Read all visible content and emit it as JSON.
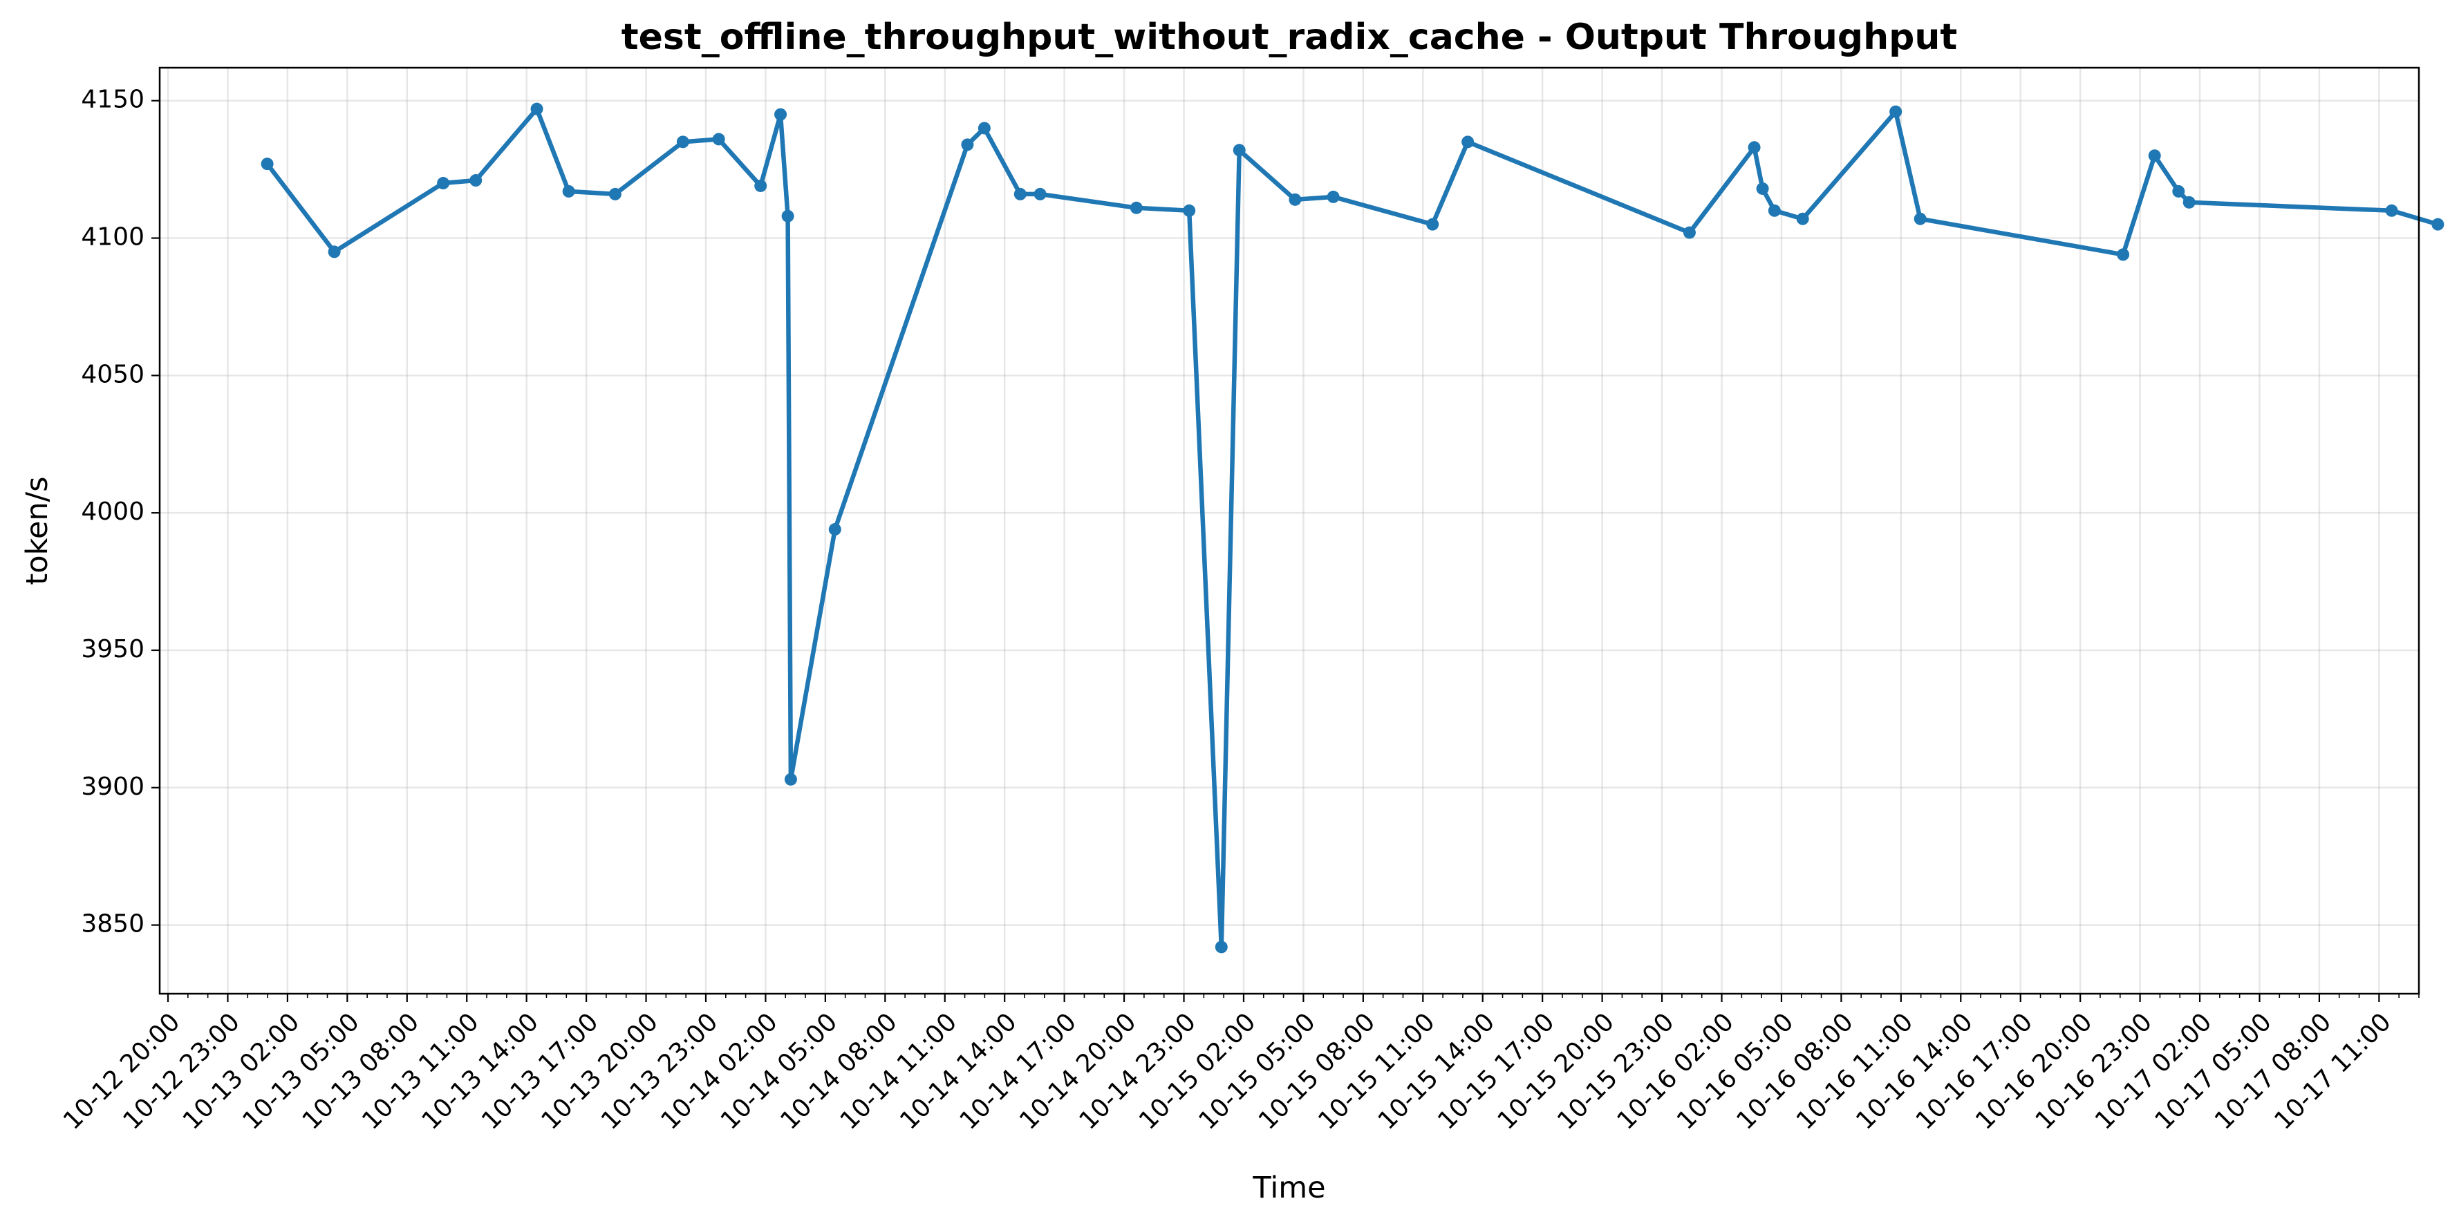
{
  "chart_data": {
    "type": "line",
    "title": "test_offline_throughput_without_radix_cache - Output Throughput",
    "xlabel": "Time",
    "ylabel": "token/s",
    "ylim": [
      3825,
      4162
    ],
    "xlim": [
      "2025-10-12T19:35",
      "2025-10-17T13:00"
    ],
    "grid": true,
    "color": "#1f77b4",
    "x_ticks": [
      "2025-10-12T20:00",
      "2025-10-12T23:00",
      "2025-10-13T02:00",
      "2025-10-13T05:00",
      "2025-10-13T08:00",
      "2025-10-13T11:00",
      "2025-10-13T14:00",
      "2025-10-13T17:00",
      "2025-10-13T20:00",
      "2025-10-13T23:00",
      "2025-10-14T02:00",
      "2025-10-14T05:00",
      "2025-10-14T08:00",
      "2025-10-14T11:00",
      "2025-10-14T14:00",
      "2025-10-14T17:00",
      "2025-10-14T20:00",
      "2025-10-14T23:00",
      "2025-10-15T02:00",
      "2025-10-15T05:00",
      "2025-10-15T08:00",
      "2025-10-15T11:00",
      "2025-10-15T14:00",
      "2025-10-15T17:00",
      "2025-10-15T20:00",
      "2025-10-15T23:00",
      "2025-10-16T02:00",
      "2025-10-16T05:00",
      "2025-10-16T08:00",
      "2025-10-16T11:00",
      "2025-10-16T14:00",
      "2025-10-16T17:00",
      "2025-10-16T20:00",
      "2025-10-16T23:00",
      "2025-10-17T02:00",
      "2025-10-17T05:00",
      "2025-10-17T08:00",
      "2025-10-17T11:00"
    ],
    "x_tick_labels": [
      "10-12 20:00",
      "10-12 23:00",
      "10-13 02:00",
      "10-13 05:00",
      "10-13 08:00",
      "10-13 11:00",
      "10-13 14:00",
      "10-13 17:00",
      "10-13 20:00",
      "10-13 23:00",
      "10-14 02:00",
      "10-14 05:00",
      "10-14 08:00",
      "10-14 11:00",
      "10-14 14:00",
      "10-14 17:00",
      "10-14 20:00",
      "10-14 23:00",
      "10-15 02:00",
      "10-15 05:00",
      "10-15 08:00",
      "10-15 11:00",
      "10-15 14:00",
      "10-15 17:00",
      "10-15 20:00",
      "10-15 23:00",
      "10-16 02:00",
      "10-16 05:00",
      "10-16 08:00",
      "10-16 11:00",
      "10-16 14:00",
      "10-16 17:00",
      "10-16 20:00",
      "10-16 23:00",
      "10-17 02:00",
      "10-17 05:00",
      "10-17 08:00",
      "10-17 11:00"
    ],
    "y_ticks": [
      3850,
      3900,
      3950,
      4000,
      4050,
      4100,
      4150
    ],
    "y_tick_labels": [
      "3850",
      "3900",
      "3950",
      "4000",
      "4050",
      "4100",
      "4150"
    ],
    "series": [
      {
        "x": [
          "2025-10-13T00:59",
          "2025-10-13T04:21",
          "2025-10-13T09:49",
          "2025-10-13T11:27",
          "2025-10-13T14:31",
          "2025-10-13T16:07",
          "2025-10-13T18:27",
          "2025-10-13T21:51",
          "2025-10-13T23:39",
          "2025-10-14T01:45",
          "2025-10-14T02:45",
          "2025-10-14T03:07",
          "2025-10-14T03:16",
          "2025-10-14T05:29",
          "2025-10-14T12:08",
          "2025-10-14T12:59",
          "2025-10-14T14:47",
          "2025-10-14T15:47",
          "2025-10-14T20:37",
          "2025-10-14T23:16",
          "2025-10-15T00:53",
          "2025-10-15T01:47",
          "2025-10-15T04:35",
          "2025-10-15T06:30",
          "2025-10-15T11:29",
          "2025-10-15T13:15",
          "2025-10-16T00:23",
          "2025-10-16T03:38",
          "2025-10-16T04:03",
          "2025-10-16T04:39",
          "2025-10-16T06:04",
          "2025-10-16T10:44",
          "2025-10-16T11:58",
          "2025-10-16T22:09",
          "2025-10-16T23:44",
          "2025-10-17T00:56",
          "2025-10-17T01:28",
          "2025-10-17T11:38",
          "2025-10-17T13:57"
        ],
        "values": [
          4127,
          4095,
          4120,
          4121,
          4147,
          4117,
          4116,
          4135,
          4136,
          4119,
          4145,
          4108,
          3903,
          3994,
          4134,
          4140,
          4116,
          4116,
          4111,
          4110,
          3842,
          4132,
          4114,
          4115,
          4105,
          4135,
          4102,
          4133,
          4118,
          4110,
          4107,
          4146,
          4107,
          4094,
          4130,
          4117,
          4113,
          4110,
          4105
        ]
      }
    ]
  }
}
